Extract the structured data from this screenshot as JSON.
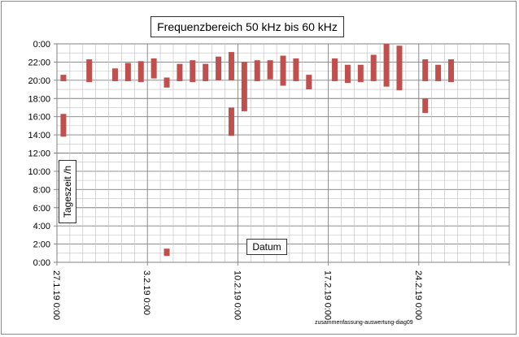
{
  "footer_text": "zusammenfassung-auswertung-diag09",
  "colors": {
    "bar": "#c0504d",
    "grid_minor": "#bfbfbf",
    "grid_major": "#808080",
    "axis": "#808080"
  },
  "chart_data": {
    "type": "bar",
    "subtype": "floating-range",
    "title": "Frequenzbereich 50 kHz bis 60 kHz",
    "xlabel": "Datum",
    "ylabel": "Tageszeit /h",
    "x_unit": "date",
    "x_range": [
      "27.1.19 0:00",
      "3.3.19 0:00"
    ],
    "x_tick_labels": [
      "27.1.19 0:00",
      "3.2.19 0:00",
      "10.2.19 0:00",
      "17.2.19 0:00",
      "24.2.19 0:00"
    ],
    "y_unit": "hour of day",
    "y_range": [
      0,
      24
    ],
    "y_tick_labels": [
      "0:00",
      "2:00",
      "4:00",
      "6:00",
      "8:00",
      "10:00",
      "12:00",
      "14:00",
      "16:00",
      "18:00",
      "20:00",
      "22:00",
      "0:00"
    ],
    "grid": true,
    "ranges": [
      {
        "date": "27.1.19",
        "start": 19.9,
        "end": 20.6
      },
      {
        "date": "27.1.19",
        "start": 13.8,
        "end": 16.3
      },
      {
        "date": "29.1.19",
        "start": 19.8,
        "end": 22.3
      },
      {
        "date": "31.1.19",
        "start": 19.9,
        "end": 21.3
      },
      {
        "date": "1.2.19",
        "start": 19.9,
        "end": 21.9
      },
      {
        "date": "2.2.19",
        "start": 19.8,
        "end": 22.1
      },
      {
        "date": "3.2.19",
        "start": 20.2,
        "end": 22.4
      },
      {
        "date": "4.2.19",
        "start": 19.2,
        "end": 20.3
      },
      {
        "date": "4.2.19",
        "start": 0.7,
        "end": 1.5
      },
      {
        "date": "5.2.19",
        "start": 19.9,
        "end": 21.8
      },
      {
        "date": "6.2.19",
        "start": 19.8,
        "end": 22.2
      },
      {
        "date": "7.2.19",
        "start": 19.9,
        "end": 21.8
      },
      {
        "date": "8.2.19",
        "start": 20.0,
        "end": 22.6
      },
      {
        "date": "9.2.19",
        "start": 20.0,
        "end": 23.1
      },
      {
        "date": "9.2.19",
        "start": 13.9,
        "end": 17.0
      },
      {
        "date": "10.2.19",
        "start": 16.6,
        "end": 22.0
      },
      {
        "date": "11.2.19",
        "start": 19.9,
        "end": 22.2
      },
      {
        "date": "12.2.19",
        "start": 20.1,
        "end": 22.2
      },
      {
        "date": "13.2.19",
        "start": 19.4,
        "end": 22.7
      },
      {
        "date": "14.2.19",
        "start": 19.9,
        "end": 22.4
      },
      {
        "date": "15.2.19",
        "start": 19.0,
        "end": 20.6
      },
      {
        "date": "17.2.19",
        "start": 19.9,
        "end": 22.4
      },
      {
        "date": "18.2.19",
        "start": 19.7,
        "end": 21.7
      },
      {
        "date": "19.2.19",
        "start": 19.8,
        "end": 21.7
      },
      {
        "date": "20.2.19",
        "start": 19.9,
        "end": 22.8
      },
      {
        "date": "21.2.19",
        "start": 19.3,
        "end": 24.0
      },
      {
        "date": "22.2.19",
        "start": 18.9,
        "end": 23.8
      },
      {
        "date": "24.2.19",
        "start": 19.9,
        "end": 22.3
      },
      {
        "date": "24.2.19",
        "start": 16.4,
        "end": 18.0
      },
      {
        "date": "25.2.19",
        "start": 19.9,
        "end": 21.7
      },
      {
        "date": "26.2.19",
        "start": 19.8,
        "end": 22.3
      }
    ]
  }
}
